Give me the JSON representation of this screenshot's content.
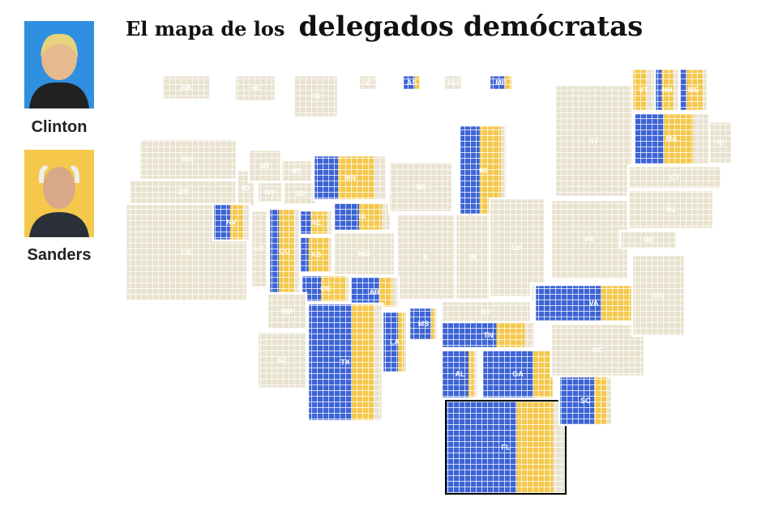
{
  "title_prefix": "El mapa de los",
  "title_emphasis": "delegados demócratas",
  "candidates": [
    {
      "name": "Clinton",
      "color": "#3d64d6"
    },
    {
      "name": "Sanders",
      "color": "#f5c84c"
    }
  ],
  "states": [
    {
      "label": "AK",
      "clinton": 0,
      "sanders": 0,
      "pending": 20
    },
    {
      "label": "HI",
      "clinton": 0,
      "sanders": 0,
      "pending": 25
    },
    {
      "label": "PR",
      "clinton": 0,
      "sanders": 0,
      "pending": 60
    },
    {
      "label": "VI",
      "clinton": 0,
      "sanders": 0,
      "pending": 7
    },
    {
      "label": "AS",
      "clinton": 4,
      "sanders": 2,
      "pending": 0
    },
    {
      "label": "GU",
      "clinton": 0,
      "sanders": 0,
      "pending": 7
    },
    {
      "label": "MP",
      "clinton": 4,
      "sanders": 2,
      "pending": 0
    },
    {
      "label": "WA",
      "clinton": 0,
      "sanders": 0,
      "pending": 101
    },
    {
      "label": "OR",
      "clinton": 0,
      "sanders": 0,
      "pending": 61
    },
    {
      "label": "CA",
      "clinton": 0,
      "sanders": 0,
      "pending": 475
    },
    {
      "label": "ID",
      "clinton": 0,
      "sanders": 0,
      "pending": 23
    },
    {
      "label": "MT",
      "clinton": 0,
      "sanders": 0,
      "pending": 21
    },
    {
      "label": "WY",
      "clinton": 0,
      "sanders": 0,
      "pending": 14
    },
    {
      "label": "ND",
      "clinton": 0,
      "sanders": 0,
      "pending": 18
    },
    {
      "label": "SD",
      "clinton": 0,
      "sanders": 0,
      "pending": 20
    },
    {
      "label": "NV",
      "clinton": 20,
      "sanders": 15,
      "pending": 8
    },
    {
      "label": "UT",
      "clinton": 0,
      "sanders": 0,
      "pending": 33
    },
    {
      "label": "CO",
      "clinton": 25,
      "sanders": 38,
      "pending": 15
    },
    {
      "label": "NE",
      "clinton": 10,
      "sanders": 15,
      "pending": 5
    },
    {
      "label": "KS",
      "clinton": 10,
      "sanders": 23,
      "pending": 4
    },
    {
      "label": "MN",
      "clinton": 31,
      "sanders": 46,
      "pending": 16
    },
    {
      "label": "IA",
      "clinton": 23,
      "sanders": 21,
      "pending": 8
    },
    {
      "label": "MO",
      "clinton": 0,
      "sanders": 0,
      "pending": 84
    },
    {
      "label": "WI",
      "clinton": 0,
      "sanders": 0,
      "pending": 86
    },
    {
      "label": "MI",
      "clinton": 63,
      "sanders": 67,
      "pending": 17
    },
    {
      "label": "IL",
      "clinton": 0,
      "sanders": 0,
      "pending": 156
    },
    {
      "label": "IN",
      "clinton": 0,
      "sanders": 0,
      "pending": 83
    },
    {
      "label": "OH",
      "clinton": 0,
      "sanders": 0,
      "pending": 143
    },
    {
      "label": "NY",
      "clinton": 0,
      "sanders": 0,
      "pending": 247
    },
    {
      "label": "PA",
      "clinton": 0,
      "sanders": 0,
      "pending": 189
    },
    {
      "label": "OK",
      "clinton": 17,
      "sanders": 21,
      "pending": 4
    },
    {
      "label": "AR",
      "clinton": 22,
      "sanders": 10,
      "pending": 5
    },
    {
      "label": "NM",
      "clinton": 0,
      "sanders": 0,
      "pending": 34
    },
    {
      "label": "AZ",
      "clinton": 0,
      "sanders": 0,
      "pending": 75
    },
    {
      "label": "TX",
      "clinton": 147,
      "sanders": 75,
      "pending": 30
    },
    {
      "label": "LA",
      "clinton": 37,
      "sanders": 14,
      "pending": 7
    },
    {
      "label": "MS",
      "clinton": 31,
      "sanders": 5,
      "pending": 5
    },
    {
      "label": "KY",
      "clinton": 0,
      "sanders": 0,
      "pending": 55
    },
    {
      "label": "TN",
      "clinton": 44,
      "sanders": 23,
      "pending": 8
    },
    {
      "label": "AL",
      "clinton": 44,
      "sanders": 9,
      "pending": 7
    },
    {
      "label": "GA",
      "clinton": 73,
      "sanders": 29,
      "pending": 0
    },
    {
      "label": "FL",
      "clinton": 141,
      "sanders": 73,
      "pending": 25
    },
    {
      "label": "WV",
      "clinton": 0,
      "sanders": 0,
      "pending": 29
    },
    {
      "label": "VA",
      "clinton": 62,
      "sanders": 33,
      "pending": 15
    },
    {
      "label": "NC",
      "clinton": 0,
      "sanders": 0,
      "pending": 107
    },
    {
      "label": "SC",
      "clinton": 39,
      "sanders": 14,
      "pending": 6
    },
    {
      "label": "MD",
      "clinton": 0,
      "sanders": 0,
      "pending": 95
    },
    {
      "label": "DE",
      "clinton": 0,
      "sanders": 0,
      "pending": 21
    },
    {
      "label": "NJ",
      "clinton": 0,
      "sanders": 0,
      "pending": 126
    },
    {
      "label": "CT",
      "clinton": 0,
      "sanders": 0,
      "pending": 55
    },
    {
      "label": "RI",
      "clinton": 0,
      "sanders": 0,
      "pending": 24
    },
    {
      "label": "MA",
      "clinton": 46,
      "sanders": 45,
      "pending": 25
    },
    {
      "label": "VT",
      "clinton": 0,
      "sanders": 16,
      "pending": 10
    },
    {
      "label": "NH",
      "clinton": 9,
      "sanders": 15,
      "pending": 8
    },
    {
      "label": "ME",
      "clinton": 8,
      "sanders": 17,
      "pending": 5
    }
  ]
}
